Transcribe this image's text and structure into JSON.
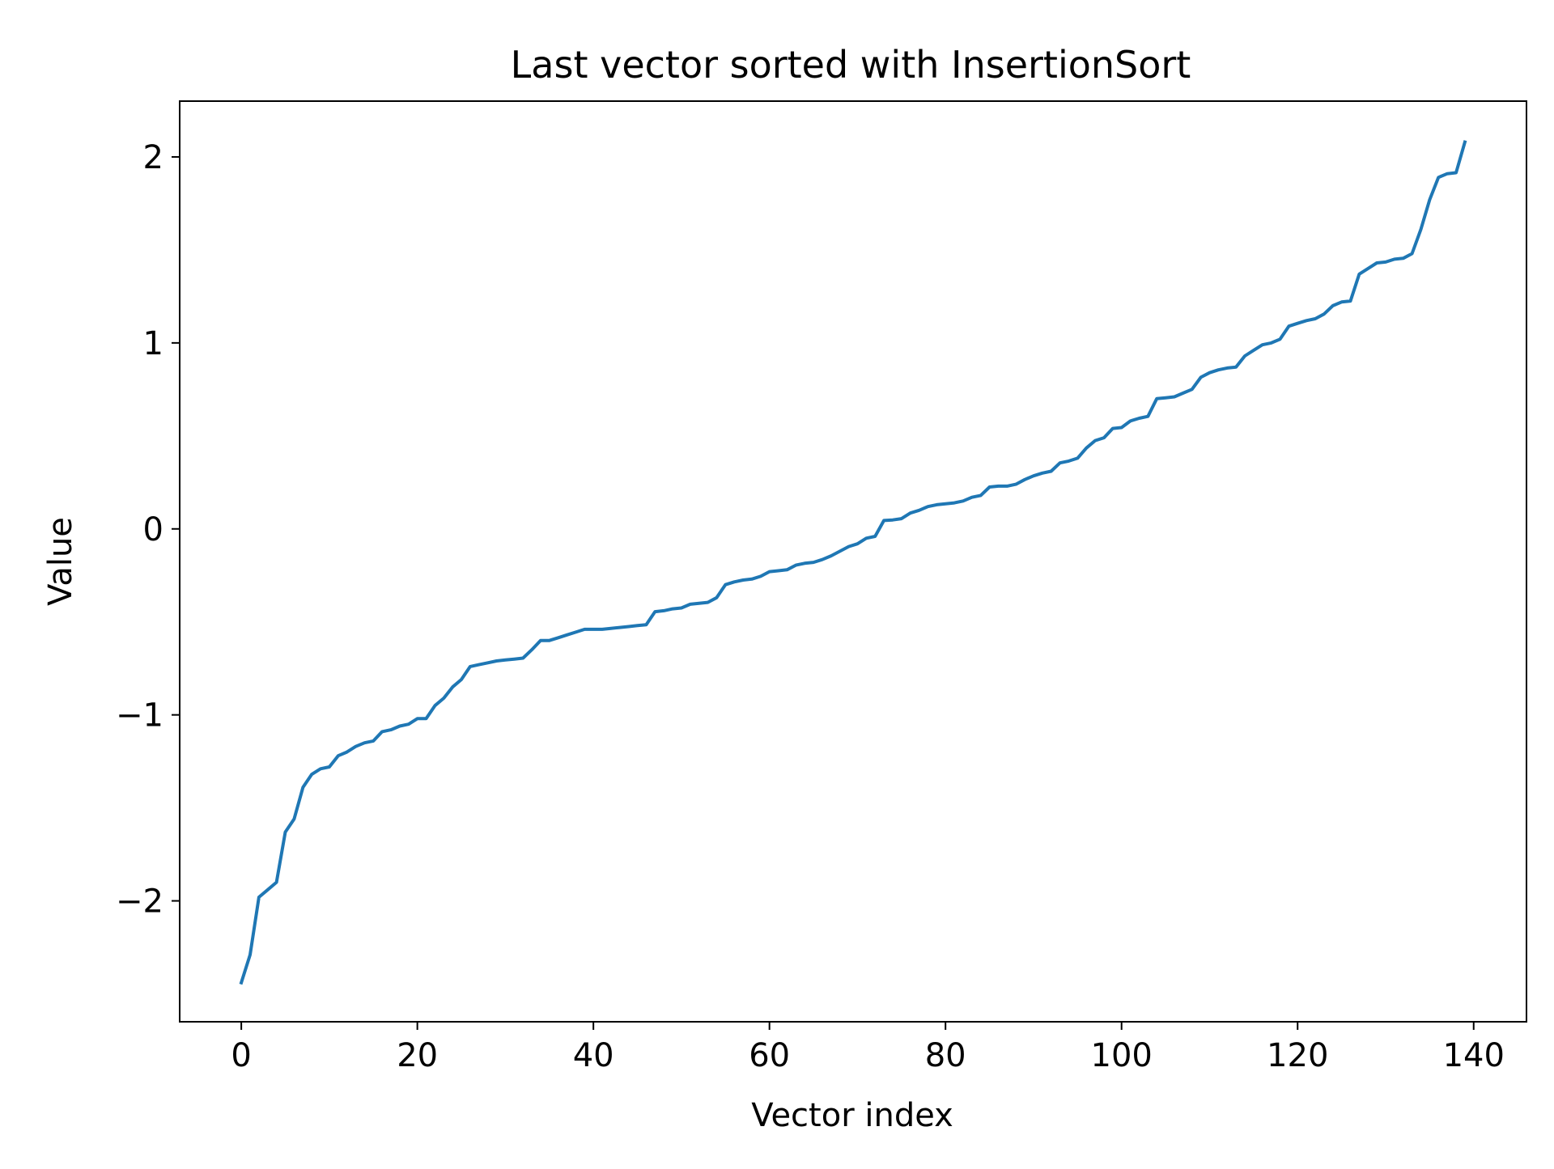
{
  "chart_data": {
    "type": "line",
    "title": "Last vector sorted with InsertionSort",
    "xlabel": "Vector index",
    "ylabel": "Value",
    "xlim": [
      -7,
      146
    ],
    "ylim": [
      -2.65,
      2.3
    ],
    "xticks": [
      0,
      20,
      40,
      60,
      80,
      100,
      120,
      140
    ],
    "xtick_labels": [
      "0",
      "20",
      "40",
      "60",
      "80",
      "100",
      "120",
      "140"
    ],
    "yticks": [
      -2,
      -1,
      0,
      1,
      2
    ],
    "ytick_labels": [
      "−2",
      "−1",
      "0",
      "1",
      "2"
    ],
    "grid": false,
    "series": [
      {
        "color": "#1f77b4",
        "x_start": 0,
        "values": [
          -2.44,
          -2.29,
          -1.98,
          -1.94,
          -1.9,
          -1.63,
          -1.56,
          -1.39,
          -1.32,
          -1.29,
          -1.28,
          -1.22,
          -1.2,
          -1.17,
          -1.15,
          -1.14,
          -1.09,
          -1.08,
          -1.06,
          -1.05,
          -1.02,
          -1.02,
          -0.95,
          -0.91,
          -0.85,
          -0.81,
          -0.74,
          -0.73,
          -0.72,
          -0.71,
          -0.705,
          -0.7,
          -0.695,
          -0.65,
          -0.6,
          -0.6,
          -0.585,
          -0.57,
          -0.555,
          -0.54,
          -0.54,
          -0.54,
          -0.535,
          -0.53,
          -0.525,
          -0.52,
          -0.515,
          -0.445,
          -0.44,
          -0.43,
          -0.425,
          -0.405,
          -0.4,
          -0.395,
          -0.37,
          -0.3,
          -0.285,
          -0.275,
          -0.27,
          -0.255,
          -0.23,
          -0.225,
          -0.22,
          -0.195,
          -0.185,
          -0.18,
          -0.165,
          -0.145,
          -0.12,
          -0.095,
          -0.08,
          -0.05,
          -0.04,
          0.045,
          0.048,
          0.055,
          0.085,
          0.1,
          0.12,
          0.13,
          0.135,
          0.14,
          0.15,
          0.17,
          0.18,
          0.225,
          0.23,
          0.23,
          0.24,
          0.265,
          0.285,
          0.3,
          0.31,
          0.355,
          0.365,
          0.38,
          0.435,
          0.475,
          0.49,
          0.54,
          0.545,
          0.58,
          0.595,
          0.605,
          0.7,
          0.705,
          0.71,
          0.73,
          0.75,
          0.815,
          0.84,
          0.855,
          0.865,
          0.87,
          0.93,
          0.96,
          0.99,
          1.0,
          1.02,
          1.09,
          1.105,
          1.12,
          1.13,
          1.155,
          1.2,
          1.22,
          1.225,
          1.37,
          1.4,
          1.43,
          1.435,
          1.45,
          1.455,
          1.48,
          1.61,
          1.77,
          1.89,
          1.91,
          1.915,
          2.08
        ]
      }
    ]
  }
}
